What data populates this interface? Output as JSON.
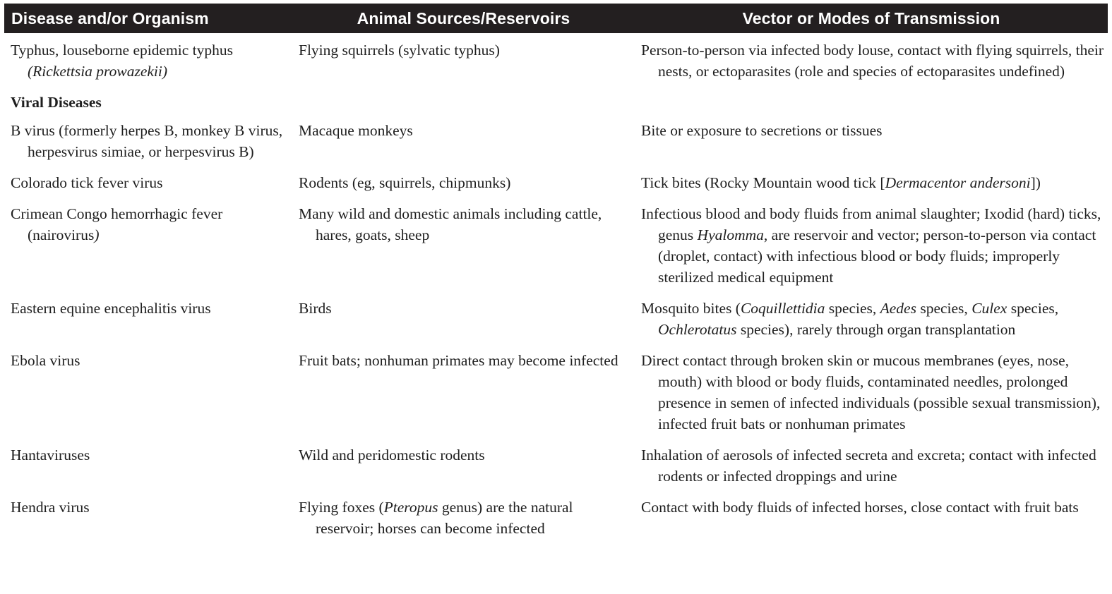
{
  "header": {
    "col1": "Disease and/or Organism",
    "col2": "Animal Sources/Reservoirs",
    "col3": "Vector or Modes of Transmission"
  },
  "rows": {
    "typhus": {
      "disease": "Typhus, louseborne epidemic typhus ",
      "disease_italic": "(Rickettsia prowazekii)",
      "source": "Flying squirrels (sylvatic typhus)",
      "vector": "Person-to-person via infected body louse, contact with flying squirrels, their nests, or ectoparasites (role and species of ectoparasites undefined)"
    },
    "section_viral": "Viral Diseases",
    "bvirus": {
      "disease": "B virus (formerly herpes B, monkey B virus, herpesvirus simiae, or herpesvirus B)",
      "source": "Macaque monkeys",
      "vector": "Bite or exposure to secretions or tissues"
    },
    "colorado": {
      "disease": "Colorado tick fever virus",
      "source": "Rodents (eg, squirrels, chipmunks)",
      "vector_a": "Tick bites (Rocky Mountain wood tick [",
      "vector_italic": "Dermacentor andersoni",
      "vector_b": "])"
    },
    "crimean": {
      "disease_a": "Crimean Congo hemorrhagic fever (nairovirus",
      "disease_italic": ")",
      "source": "Many wild and domestic animals including cattle, hares, goats, sheep",
      "vector_a": "Infectious blood and body fluids from animal slaughter; Ixodid (hard) ticks, genus ",
      "vector_italic": "Hyalomma",
      "vector_b": ", are reservoir and vector; person-to-person via contact (droplet, contact) with infectious blood or body fluids; improperly sterilized medical equipment"
    },
    "eastern": {
      "disease": "Eastern equine encephalitis virus",
      "source": "Birds",
      "vector_a": "Mosquito bites (",
      "vector_i1": "Coquillettidia",
      "vector_b": " species, ",
      "vector_i2": "Aedes",
      "vector_c": " species, ",
      "vector_i3": "Culex",
      "vector_d": " species, ",
      "vector_i4": "Ochlerotatus",
      "vector_e": " species), rarely through organ transplantation"
    },
    "ebola": {
      "disease": "Ebola virus",
      "source": "Fruit bats; nonhuman primates may become infected",
      "vector": "Direct contact through broken skin or mucous membranes (eyes, nose, mouth) with blood or body fluids, contaminated needles, prolonged presence in semen of infected individuals (possible sexual transmission), infected fruit bats or nonhuman primates"
    },
    "hanta": {
      "disease": "Hantaviruses",
      "source": "Wild and peridomestic rodents",
      "vector": "Inhalation of aerosols of infected secreta and excreta; contact with infected rodents or infected droppings and urine"
    },
    "hendra": {
      "disease": "Hendra virus",
      "source_a": "Flying foxes (",
      "source_italic": "Pteropus",
      "source_b": " genus) are the natural reservoir; horses can become infected",
      "vector": "Contact with body fluids of infected horses, close contact with fruit bats"
    }
  }
}
